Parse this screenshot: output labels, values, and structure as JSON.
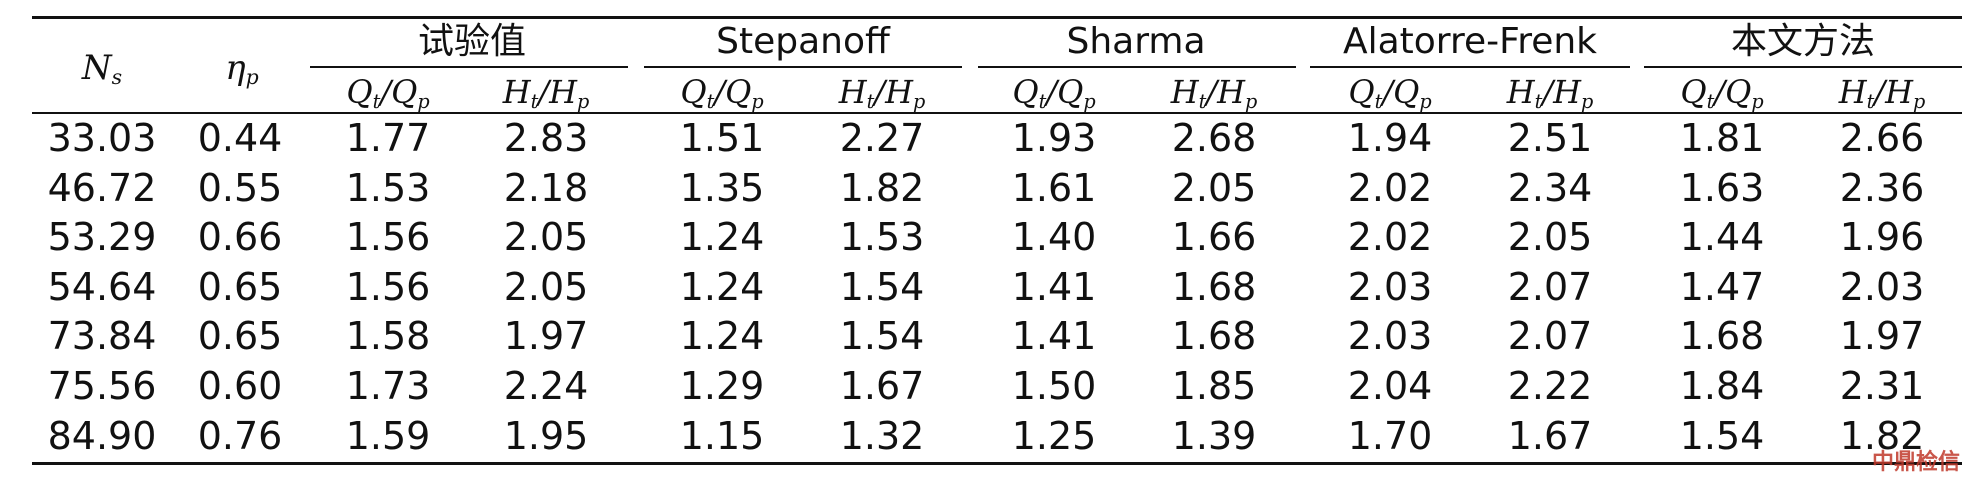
{
  "table": {
    "col_ns": {
      "sym": "N",
      "sub": "s"
    },
    "col_eta": {
      "sym": "η",
      "sub": "p"
    },
    "groups": [
      "试验值",
      "Stepanoff",
      "Sharma",
      "Alatorre-Frenk",
      "本文方法"
    ],
    "subheader": {
      "q": {
        "a": "Q",
        "a_sub": "t",
        "b": "Q",
        "b_sub": "p"
      },
      "h": {
        "a": "H",
        "a_sub": "t",
        "b": "H",
        "b_sub": "p"
      }
    },
    "rows": [
      [
        "33.03",
        "0.44",
        "1.77",
        "2.83",
        "1.51",
        "2.27",
        "1.93",
        "2.68",
        "1.94",
        "2.51",
        "1.81",
        "2.66"
      ],
      [
        "46.72",
        "0.55",
        "1.53",
        "2.18",
        "1.35",
        "1.82",
        "1.61",
        "2.05",
        "2.02",
        "2.34",
        "1.63",
        "2.36"
      ],
      [
        "53.29",
        "0.66",
        "1.56",
        "2.05",
        "1.24",
        "1.53",
        "1.40",
        "1.66",
        "2.02",
        "2.05",
        "1.44",
        "1.96"
      ],
      [
        "54.64",
        "0.65",
        "1.56",
        "2.05",
        "1.24",
        "1.54",
        "1.41",
        "1.68",
        "2.03",
        "2.07",
        "1.47",
        "2.03"
      ],
      [
        "73.84",
        "0.65",
        "1.58",
        "1.97",
        "1.24",
        "1.54",
        "1.41",
        "1.68",
        "2.03",
        "2.07",
        "1.68",
        "1.97"
      ],
      [
        "75.56",
        "0.60",
        "1.73",
        "2.24",
        "1.29",
        "1.67",
        "1.50",
        "1.85",
        "2.04",
        "2.22",
        "1.84",
        "2.31"
      ],
      [
        "84.90",
        "0.76",
        "1.59",
        "1.95",
        "1.15",
        "1.32",
        "1.25",
        "1.39",
        "1.70",
        "1.67",
        "1.54",
        "1.82"
      ]
    ]
  },
  "watermark": "中鼎检信"
}
